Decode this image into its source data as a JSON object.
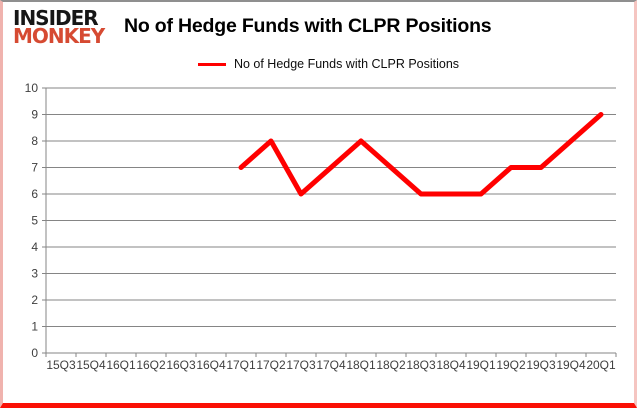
{
  "logo": {
    "line1": "INSIDER",
    "line2": "MONKEY",
    "line1_color": "#161616",
    "line2_color": "#d64a32"
  },
  "header": {
    "title": "No of Hedge Funds with CLPR Positions"
  },
  "legend": {
    "label": "No of Hedge Funds with CLPR Positions",
    "swatch_color": "#ff0000"
  },
  "frame_colors": {
    "top_border": "#8f8f8f",
    "side_border": "#f0b3ae",
    "bottom_border": "#fa1005"
  },
  "chart_data": {
    "type": "line",
    "title": "No of Hedge Funds with CLPR Positions",
    "categories": [
      "15Q3",
      "15Q4",
      "16Q1",
      "16Q2",
      "16Q3",
      "16Q4",
      "17Q1",
      "17Q2",
      "17Q3",
      "17Q4",
      "18Q1",
      "18Q2",
      "18Q3",
      "18Q4",
      "19Q1",
      "19Q2",
      "19Q3",
      "19Q4",
      "20Q1"
    ],
    "series": [
      {
        "name": "No of Hedge Funds with CLPR Positions",
        "color": "#ff0000",
        "values": [
          null,
          null,
          null,
          null,
          null,
          null,
          7,
          8,
          6,
          7,
          8,
          7,
          6,
          6,
          6,
          7,
          7,
          8,
          9
        ]
      }
    ],
    "ylim": [
      0,
      10
    ],
    "yticks": [
      0,
      1,
      2,
      3,
      4,
      5,
      6,
      7,
      8,
      9,
      10
    ],
    "grid": true,
    "grid_color": "#858585",
    "axis_color": "#858585",
    "legend_position": "top-center",
    "line_width": 5
  }
}
